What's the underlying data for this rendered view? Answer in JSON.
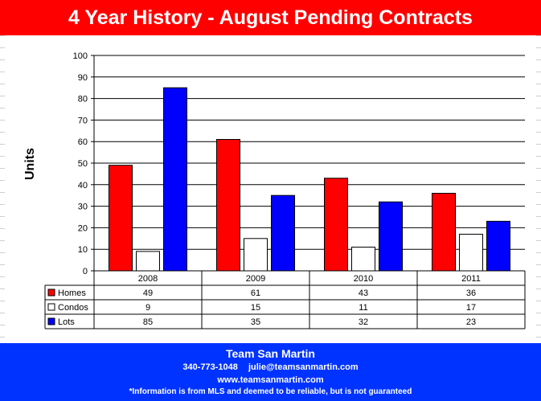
{
  "header": {
    "title": "4 Year History - August Pending Contracts"
  },
  "chart_data": {
    "type": "bar",
    "ylabel": "Units",
    "ylim": [
      0,
      100
    ],
    "yticks": [
      0,
      10,
      20,
      30,
      40,
      50,
      60,
      70,
      80,
      90,
      100
    ],
    "categories": [
      "2008",
      "2009",
      "2010",
      "2011"
    ],
    "grid": true,
    "legend": "data-table",
    "series": [
      {
        "name": "Homes",
        "color": "#ff0000",
        "values": [
          49,
          61,
          43,
          36
        ]
      },
      {
        "name": "Condos",
        "color": "#ffffff",
        "values": [
          9,
          15,
          11,
          17
        ]
      },
      {
        "name": "Lots",
        "color": "#0000ff",
        "values": [
          85,
          35,
          32,
          23
        ]
      }
    ]
  },
  "footer": {
    "brand": "Team San Martin",
    "phone": "340-773-1048",
    "email": "julie@teamsanmartin.com",
    "website": "www.teamsanmartin.com",
    "disclaimer": "*Information is from MLS and deemed to be reliable, but is not guaranteed"
  }
}
